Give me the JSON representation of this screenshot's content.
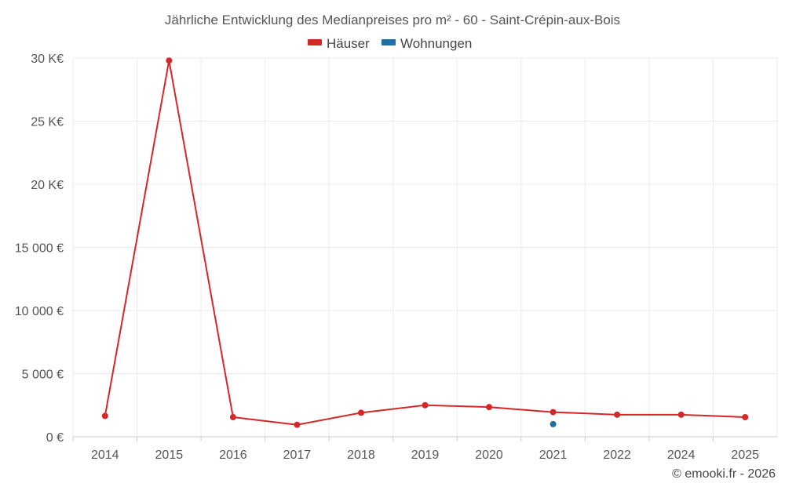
{
  "chart_data": {
    "type": "line",
    "title": "Jährliche Entwicklung des Medianpreises pro m² - 60 - Saint-Crépin-aux-Bois",
    "categories": [
      "2014",
      "2015",
      "2016",
      "2017",
      "2018",
      "2019",
      "2020",
      "2021",
      "2022",
      "2024",
      "2025"
    ],
    "series": [
      {
        "name": "Häuser",
        "color": "#d62728",
        "values": [
          1650,
          29800,
          1550,
          950,
          1900,
          2500,
          2350,
          1950,
          1750,
          1750,
          1550
        ]
      },
      {
        "name": "Wohnungen",
        "color": "#1f6fa8",
        "values": [
          null,
          null,
          null,
          null,
          null,
          null,
          null,
          1000,
          null,
          null,
          null
        ]
      }
    ],
    "ylim": [
      0,
      30000
    ],
    "yticks": [
      0,
      5000,
      10000,
      15000,
      20000,
      25000,
      30000
    ],
    "ytick_labels": [
      "0 €",
      "5 000 €",
      "10 000 €",
      "15 000 €",
      "20 K€",
      "25 K€",
      "30 K€"
    ],
    "legend_position": "top-center",
    "grid": true
  },
  "credit": "© emooki.fr - 2026"
}
